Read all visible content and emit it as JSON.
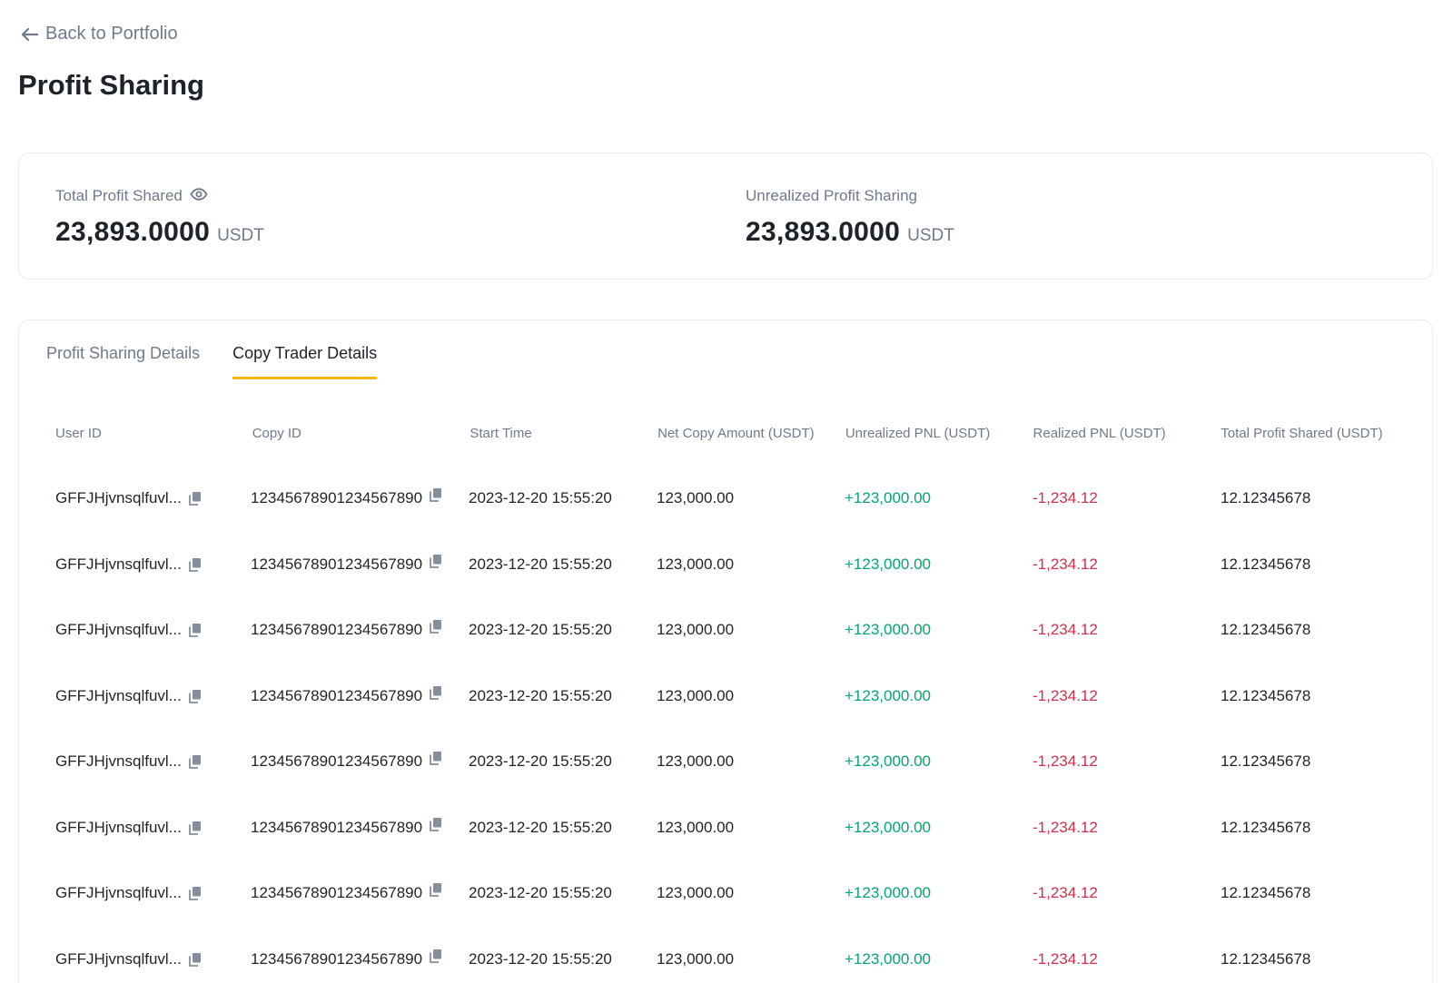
{
  "nav": {
    "back_label": "Back to Portfolio"
  },
  "page": {
    "title": "Profit Sharing"
  },
  "summary": {
    "total_profit_label": "Total Profit Shared",
    "total_profit_value": "23,893.0000",
    "total_profit_unit": "USDT",
    "unrealized_label": "Unrealized Profit Sharing",
    "unrealized_value": "23,893.0000",
    "unrealized_unit": "USDT"
  },
  "tabs": [
    {
      "label": "Profit Sharing Details",
      "active": false
    },
    {
      "label": "Copy Trader Details",
      "active": true
    }
  ],
  "table": {
    "headers": {
      "user_id": "User ID",
      "copy_id": "Copy ID",
      "start_time": "Start Time",
      "net_copy": "Net Copy Amount (USDT)",
      "unrealized_pnl": "Unrealized PNL (USDT)",
      "realized_pnl": "Realized PNL (USDT)",
      "total_profit": "Total Profit Shared (USDT)"
    },
    "rows": [
      {
        "user_id": "GFFJHjvnsqlfuvl...",
        "copy_id": "12345678901234567890",
        "start_time": "2023-12-20 15:55:20",
        "net_copy": "123,000.00",
        "unrealized_pnl": "+123,000.00",
        "realized_pnl": "-1,234.12",
        "total_profit": "12.12345678"
      },
      {
        "user_id": "GFFJHjvnsqlfuvl...",
        "copy_id": "12345678901234567890",
        "start_time": "2023-12-20 15:55:20",
        "net_copy": "123,000.00",
        "unrealized_pnl": "+123,000.00",
        "realized_pnl": "-1,234.12",
        "total_profit": "12.12345678"
      },
      {
        "user_id": "GFFJHjvnsqlfuvl...",
        "copy_id": "12345678901234567890",
        "start_time": "2023-12-20 15:55:20",
        "net_copy": "123,000.00",
        "unrealized_pnl": "+123,000.00",
        "realized_pnl": "-1,234.12",
        "total_profit": "12.12345678"
      },
      {
        "user_id": "GFFJHjvnsqlfuvl...",
        "copy_id": "12345678901234567890",
        "start_time": "2023-12-20 15:55:20",
        "net_copy": "123,000.00",
        "unrealized_pnl": "+123,000.00",
        "realized_pnl": "-1,234.12",
        "total_profit": "12.12345678"
      },
      {
        "user_id": "GFFJHjvnsqlfuvl...",
        "copy_id": "12345678901234567890",
        "start_time": "2023-12-20 15:55:20",
        "net_copy": "123,000.00",
        "unrealized_pnl": "+123,000.00",
        "realized_pnl": "-1,234.12",
        "total_profit": "12.12345678"
      },
      {
        "user_id": "GFFJHjvnsqlfuvl...",
        "copy_id": "12345678901234567890",
        "start_time": "2023-12-20 15:55:20",
        "net_copy": "123,000.00",
        "unrealized_pnl": "+123,000.00",
        "realized_pnl": "-1,234.12",
        "total_profit": "12.12345678"
      },
      {
        "user_id": "GFFJHjvnsqlfuvl...",
        "copy_id": "12345678901234567890",
        "start_time": "2023-12-20 15:55:20",
        "net_copy": "123,000.00",
        "unrealized_pnl": "+123,000.00",
        "realized_pnl": "-1,234.12",
        "total_profit": "12.12345678"
      },
      {
        "user_id": "GFFJHjvnsqlfuvl...",
        "copy_id": "12345678901234567890",
        "start_time": "2023-12-20 15:55:20",
        "net_copy": "123,000.00",
        "unrealized_pnl": "+123,000.00",
        "realized_pnl": "-1,234.12",
        "total_profit": "12.12345678"
      }
    ]
  },
  "colors": {
    "positive": "#03a66d",
    "negative": "#cf304a",
    "accent": "#f0b90b",
    "muted": "#707a8a",
    "text": "#1e2329"
  },
  "icons": {
    "back": "arrow-left-icon",
    "visibility": "eye-icon",
    "copy": "copy-icon"
  }
}
